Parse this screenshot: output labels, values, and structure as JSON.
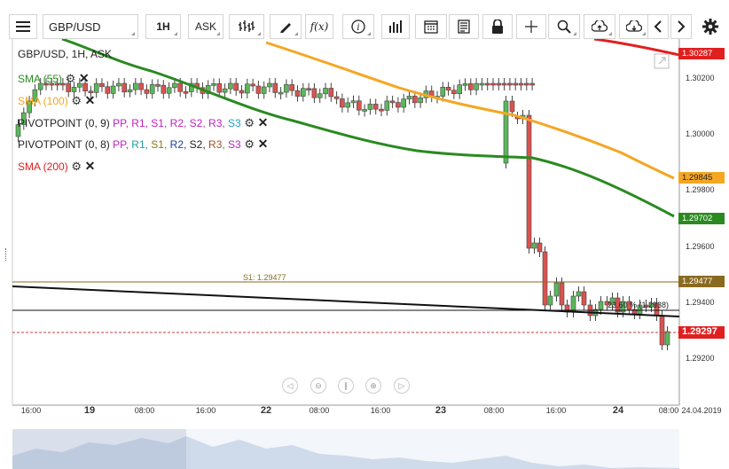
{
  "toolbar": {
    "symbol": "GBP/USD",
    "timeframe": "1H",
    "price_type": "ASK",
    "icons": [
      "menu-icon",
      "bar-type-icon",
      "draw-icon",
      "fx-icon",
      "info-icon",
      "volume-icon",
      "calendar-icon",
      "news-icon",
      "lock-icon",
      "crosshair-icon",
      "zoom-icon",
      "upload-icon",
      "download-icon",
      "prev-icon",
      "next-icon",
      "settings-icon"
    ],
    "fx_label": "f(x)"
  },
  "chart_header": "GBP/USD, 1H, ASK",
  "legend": [
    {
      "label": "SMA (55)",
      "color": "#2a8a20"
    },
    {
      "label": "SMA (100)",
      "color": "#f5a623"
    },
    {
      "label": "PIVOTPOINT (0, 9)",
      "color": "#222222"
    },
    {
      "label": "PIVOTPOINT (0, 8)",
      "color": "#222222"
    },
    {
      "label": "SMA (200)",
      "color": "#e02020"
    }
  ],
  "pivot_levels_1": [
    {
      "t": "PP,",
      "c": "#c020c0"
    },
    {
      "t": "R1,",
      "c": "#c020c0"
    },
    {
      "t": "S1,",
      "c": "#c020c0"
    },
    {
      "t": "R2,",
      "c": "#c020c0"
    },
    {
      "t": "S2,",
      "c": "#c020c0"
    },
    {
      "t": "R3,",
      "c": "#c020c0"
    },
    {
      "t": "S3",
      "c": "#20a0c0"
    }
  ],
  "pivot_levels_2": [
    {
      "t": "PP,",
      "c": "#c020c0"
    },
    {
      "t": "R1,",
      "c": "#20a0a0"
    },
    {
      "t": "S1,",
      "c": "#8a7a10"
    },
    {
      "t": "R2,",
      "c": "#2040a0"
    },
    {
      "t": "S2,",
      "c": "#222222"
    },
    {
      "t": "R3,",
      "c": "#a05020"
    },
    {
      "t": "S3",
      "c": "#c020c0"
    }
  ],
  "annotations": {
    "s1_label": "S1: 1.29477",
    "fib_label": "23.60 % (1.2938)"
  },
  "price_axis": [
    "1.30200",
    "1.30000",
    "1.29800",
    "1.29600",
    "1.29400",
    "1.29200"
  ],
  "price_tags": [
    {
      "value": "1.30287",
      "bg": "#e02020",
      "fg": "#ffffff"
    },
    {
      "value": "1.29845",
      "bg": "#f5a623",
      "fg": "#222222"
    },
    {
      "value": "1.29702",
      "bg": "#2a8a20",
      "fg": "#ffffff"
    },
    {
      "value": "1.29477",
      "bg": "#8a6a20",
      "fg": "#ffffff"
    },
    {
      "value": "1.29297",
      "bg": "#e02020",
      "fg": "#ffffff"
    }
  ],
  "time_axis": [
    {
      "t": "16:00",
      "day": false
    },
    {
      "t": "19",
      "day": true
    },
    {
      "t": "08:00",
      "day": false
    },
    {
      "t": "16:00",
      "day": false
    },
    {
      "t": "22",
      "day": true
    },
    {
      "t": "08:00",
      "day": false
    },
    {
      "t": "16:00",
      "day": false
    },
    {
      "t": "23",
      "day": true
    },
    {
      "t": "08:00",
      "day": false
    },
    {
      "t": "16:00",
      "day": false
    },
    {
      "t": "24",
      "day": true
    },
    {
      "t": "08:00",
      "day": false
    }
  ],
  "time_axis_date": "24.04.2019",
  "colors": {
    "up": "#5ab85a",
    "down": "#d9534f",
    "sma55": "#2a8a20",
    "sma100": "#f5a623",
    "sma200": "#e02020",
    "s1": "#8a6a20"
  }
}
